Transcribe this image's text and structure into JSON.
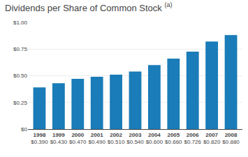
{
  "chart_data": {
    "type": "bar",
    "title": "Dividends per Share of Common Stock",
    "annotations": [
      "(a)"
    ],
    "categories": [
      "1998",
      "1999",
      "2000",
      "2001",
      "2002",
      "2003",
      "2004",
      "2005",
      "2006",
      "2007",
      "2008"
    ],
    "values": [
      0.39,
      0.43,
      0.47,
      0.49,
      0.51,
      0.54,
      0.6,
      0.66,
      0.726,
      0.82,
      0.88
    ],
    "value_labels": [
      "$0.390",
      "$0.430",
      "$0.470",
      "$0.490",
      "$0.510",
      "$0.540",
      "$0.600",
      "$0.660",
      "$0.726",
      "$0.820",
      "$0.880"
    ],
    "data_labels": true,
    "color": "#1a7cb8",
    "ylim": [
      0,
      1.0
    ],
    "yticks": [
      {
        "value": 0,
        "label": "$0"
      },
      {
        "value": 0.25,
        "label": "$0.25"
      },
      {
        "value": 0.5,
        "label": "$0.50"
      },
      {
        "value": 0.75,
        "label": "$0.75"
      },
      {
        "value": 1.0,
        "label": "$1.00"
      }
    ],
    "grid": true
  }
}
